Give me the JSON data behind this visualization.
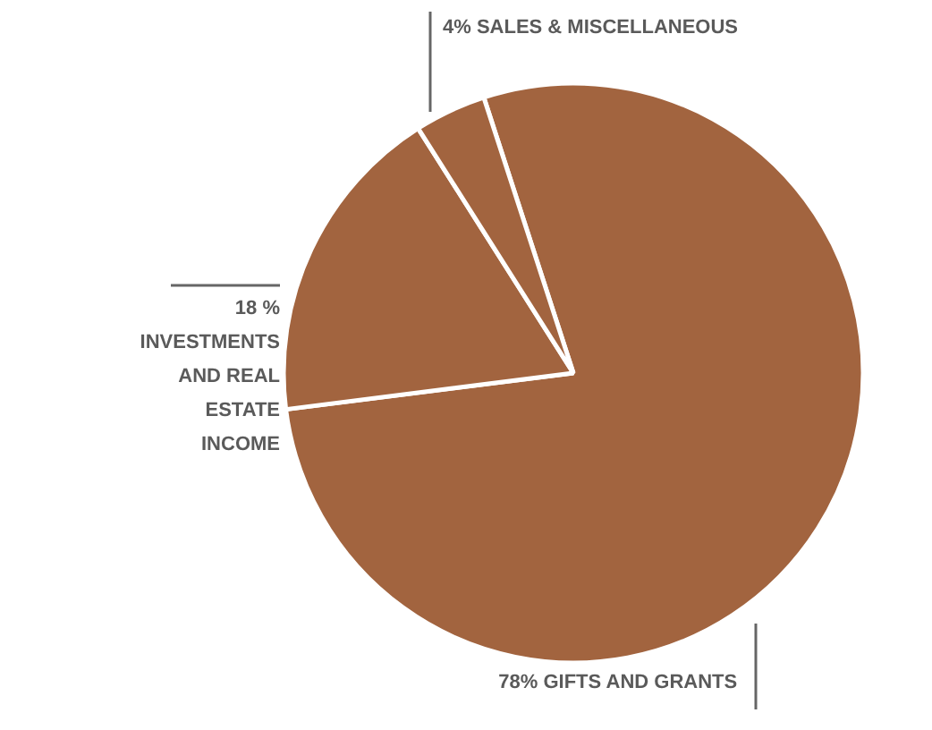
{
  "chart_data": {
    "type": "pie",
    "categories": [
      "GIFTS AND GRANTS",
      "INVESTMENTS AND REAL ESTATE INCOME",
      "SALES & MISCELLANEOUS"
    ],
    "values": [
      78,
      18,
      4
    ],
    "value_labels": [
      "78%",
      "18 %",
      "4%"
    ],
    "colors": [
      "#a2643f",
      "#a2643f",
      "#a2643f"
    ]
  }
}
